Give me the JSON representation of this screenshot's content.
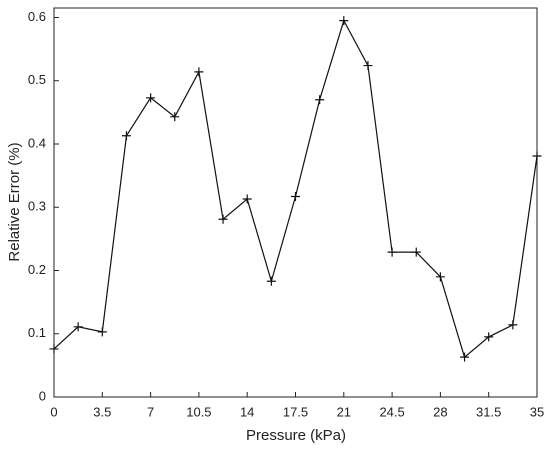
{
  "chart_data": {
    "type": "line",
    "x_label": "Pressure (kPa)",
    "y_label": "Relative Error (%)",
    "x": [
      0,
      1.75,
      3.5,
      5.25,
      7,
      8.75,
      10.5,
      12.25,
      14,
      15.75,
      17.5,
      19.25,
      21,
      22.75,
      24.5,
      26.25,
      28,
      29.75,
      31.5,
      33.25,
      35
    ],
    "series": [
      {
        "name": "Relative Error",
        "color": "#111111",
        "values": [
          0.076,
          0.111,
          0.103,
          0.413,
          0.473,
          0.443,
          0.514,
          0.281,
          0.313,
          0.183,
          0.317,
          0.47,
          0.595,
          0.524,
          0.229,
          0.229,
          0.19,
          0.063,
          0.095,
          0.114,
          0.381
        ]
      }
    ],
    "xlim": [
      0,
      35
    ],
    "xticks": [
      0,
      3.5,
      7,
      10.5,
      14,
      17.5,
      21,
      24.5,
      28,
      31.5,
      35
    ],
    "ylim": [
      0,
      0.615
    ],
    "yticks": [
      0,
      0.1,
      0.2,
      0.3,
      0.4,
      0.5,
      0.6
    ],
    "marker": "+",
    "grid": false
  }
}
